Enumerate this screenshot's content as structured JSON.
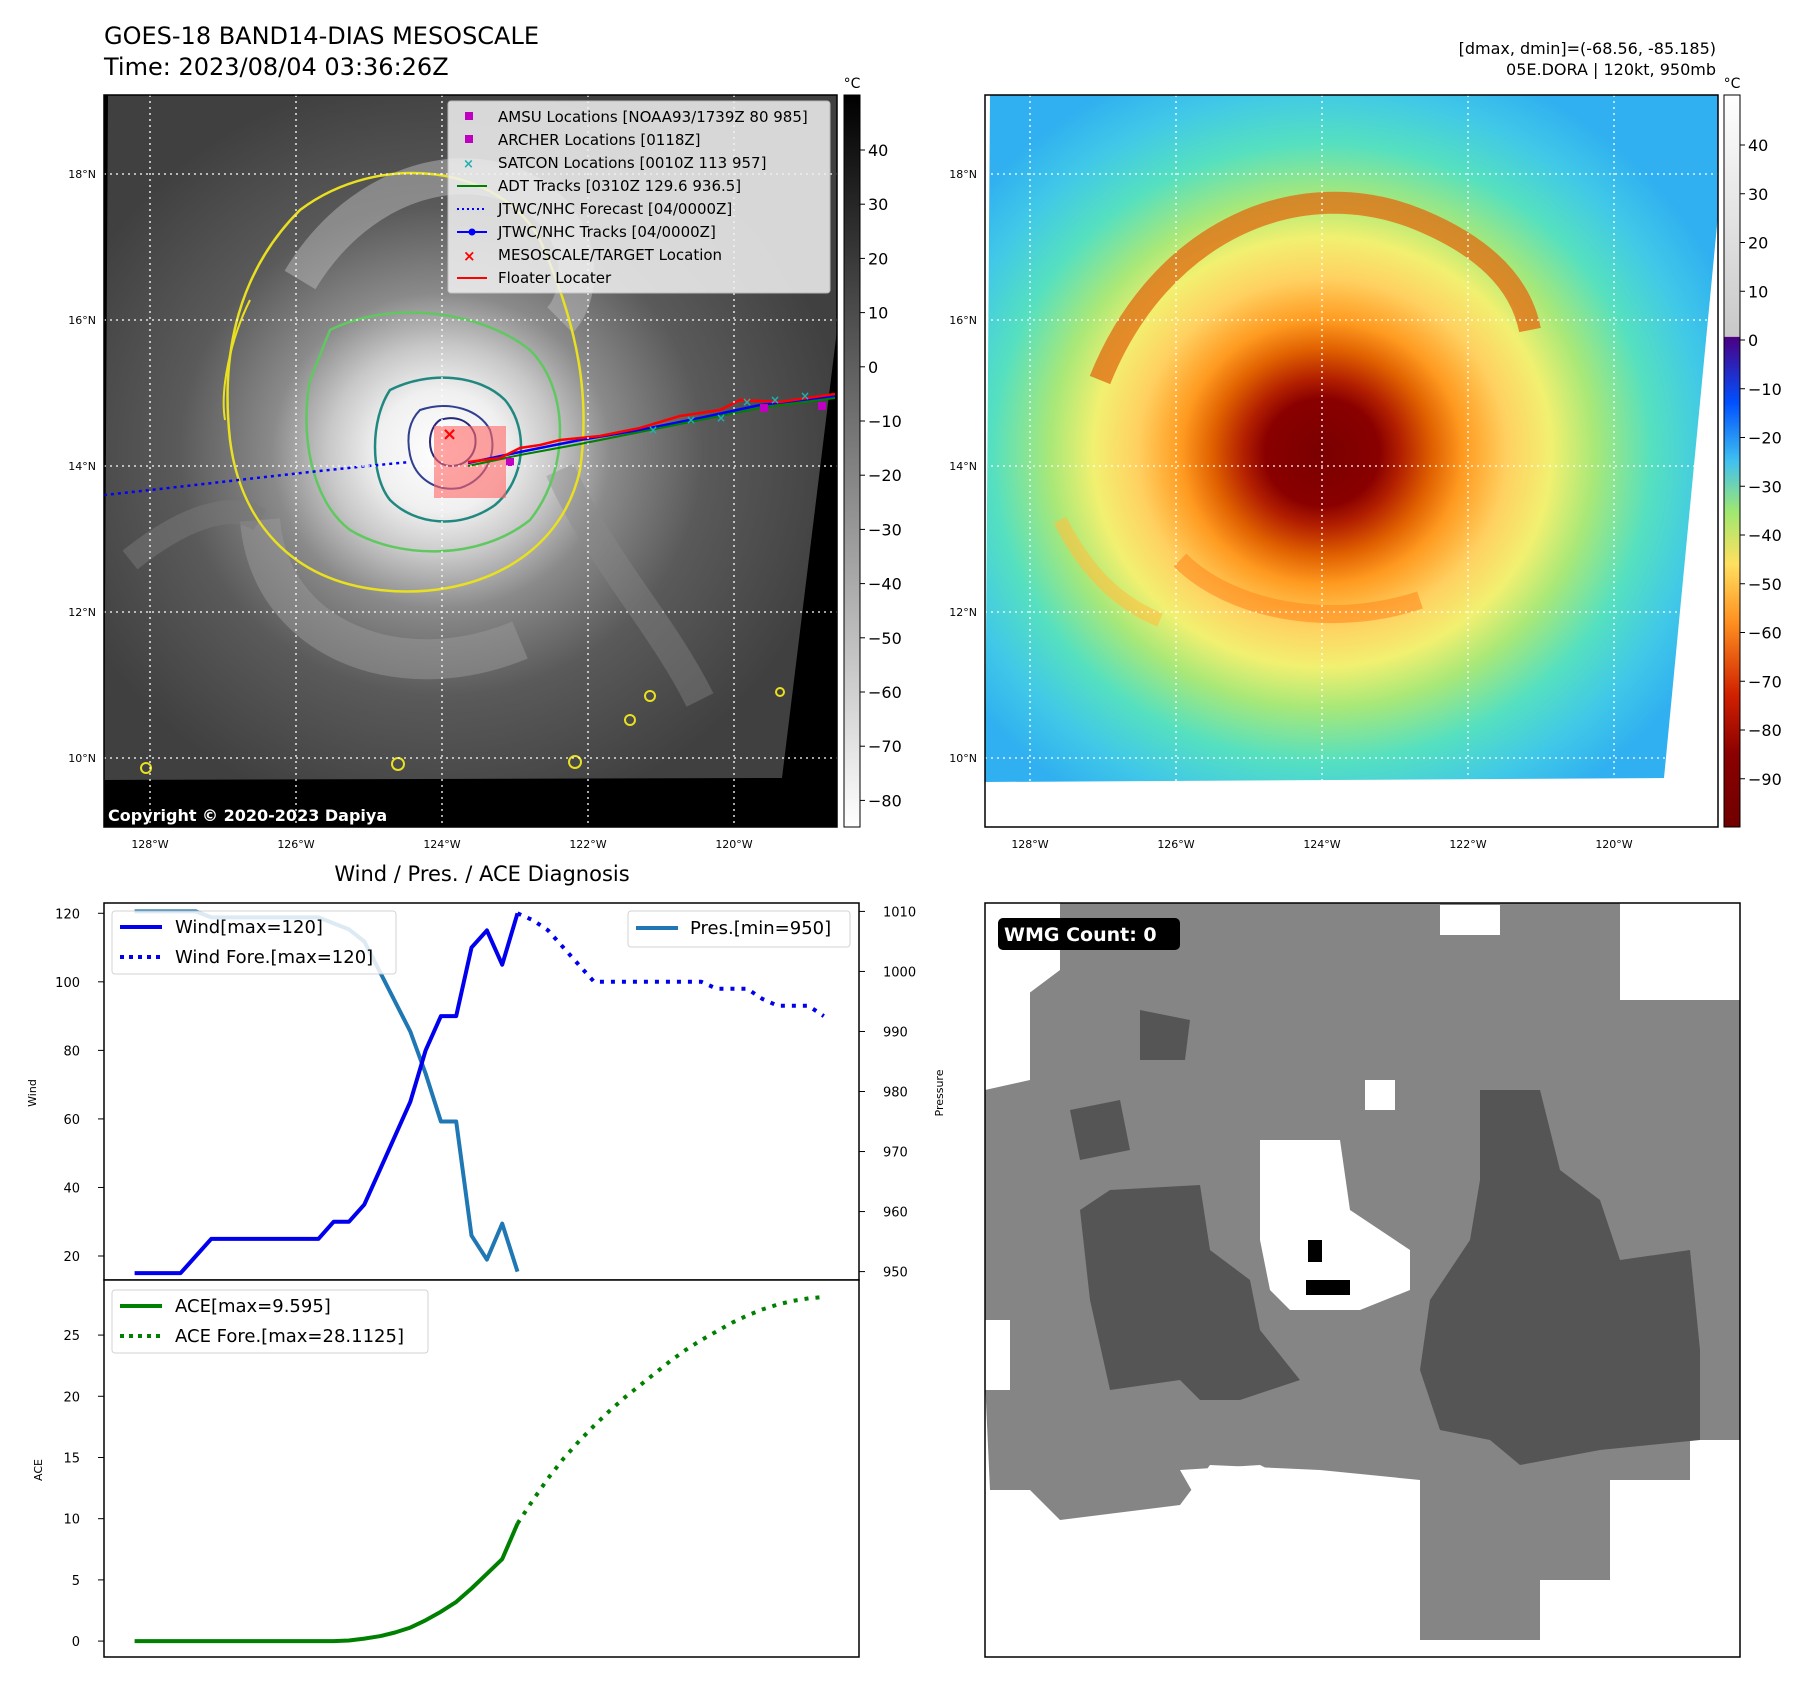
{
  "header": {
    "title_line1": "GOES-18 BAND14-DIAS MESOSCALE",
    "title_line2": "Time: 2023/08/04 03:36:26Z",
    "right_line1": "[dmax, dmin]=(-68.56, -85.185)",
    "right_line2": "05E.DORA | 120kt, 950mb"
  },
  "maps": {
    "lat_ticks": [
      "18°N",
      "16°N",
      "14°N",
      "12°N",
      "10°N"
    ],
    "lon_ticks": [
      "128°W",
      "126°W",
      "124°W",
      "122°W",
      "120°W"
    ],
    "copyright": "Copyright © 2020-2023 Dapiya",
    "legend": [
      {
        "label": "AMSU Locations [NOAA93/1739Z 80 985]",
        "marker": "square",
        "color": "#c000c0"
      },
      {
        "label": "ARCHER Locations [0118Z]",
        "marker": "square",
        "color": "#c000c0"
      },
      {
        "label": "SATCON Locations [0010Z 113 957]",
        "marker": "x",
        "color": "#20b0b0"
      },
      {
        "label": "ADT Tracks [0310Z 129.6 936.5]",
        "marker": "line",
        "color": "#008000"
      },
      {
        "label": "JTWC/NHC Forecast [04/0000Z]",
        "marker": "dotted",
        "color": "#0000ff"
      },
      {
        "label": "JTWC/NHC Tracks [04/0000Z]",
        "marker": "line-dot",
        "color": "#0000ff"
      },
      {
        "label": "MESOSCALE/TARGET Location",
        "marker": "x",
        "color": "#ff0000"
      },
      {
        "label": "Floater Locater",
        "marker": "line",
        "color": "#ff0000"
      }
    ]
  },
  "colorbars": {
    "unit": "°C",
    "left_ticks": [
      "40",
      "30",
      "20",
      "10",
      "0",
      "−10",
      "−20",
      "−30",
      "−40",
      "−50",
      "−60",
      "−70",
      "−80"
    ],
    "right_ticks": [
      "40",
      "30",
      "20",
      "10",
      "0",
      "−10",
      "−20",
      "−30",
      "−40",
      "−50",
      "−60",
      "−70",
      "−80",
      "−90"
    ]
  },
  "wmg": {
    "label": "WMG Count: 0"
  },
  "chart_data": {
    "type": "line",
    "title": "Wind / Pres. / ACE Diagnosis",
    "wind_axis": {
      "ylabel": "Wind",
      "ticks": [
        20,
        40,
        60,
        80,
        100,
        120
      ],
      "ylim": [
        13,
        123
      ]
    },
    "pressure_axis": {
      "ylabel": "Pressure",
      "ticks": [
        950,
        960,
        970,
        980,
        990,
        1000,
        1010
      ],
      "ylim": [
        948.6,
        1011.4
      ]
    },
    "ace_axis": {
      "ylabel": "ACE",
      "ticks": [
        0,
        5,
        10,
        15,
        20,
        25
      ],
      "ylim": [
        -1.3,
        29.5
      ]
    },
    "legends": {
      "wind": [
        "Wind[max=120]",
        "Wind Fore.[max=120]"
      ],
      "pressure": [
        "Pres.[min=950]"
      ],
      "ace": [
        "ACE[max=9.595]",
        "ACE Fore.[max=28.1125]"
      ]
    },
    "series": [
      {
        "name": "Wind[max=120]",
        "style": "solid",
        "color": "#0000ee",
        "x": [
          0,
          1,
          2,
          3,
          4,
          5,
          6,
          7,
          8,
          9,
          10,
          11,
          12,
          13,
          14,
          15,
          16,
          17,
          18,
          19,
          20,
          21,
          22,
          23,
          24,
          25
        ],
        "values": [
          15,
          15,
          15,
          15,
          20,
          25,
          25,
          25,
          25,
          25,
          25,
          25,
          25,
          30,
          30,
          35,
          45,
          55,
          65,
          80,
          90,
          90,
          110,
          115,
          105,
          120
        ]
      },
      {
        "name": "Wind Fore.[max=120]",
        "style": "dotted",
        "color": "#0000ee",
        "x": [
          25,
          26,
          27,
          28,
          29,
          30,
          31,
          32,
          33,
          34,
          35,
          36,
          37,
          38,
          39,
          40,
          41,
          42,
          43,
          44,
          45
        ],
        "values": [
          120,
          118,
          115,
          110,
          105,
          100,
          100,
          100,
          100,
          100,
          100,
          100,
          100,
          98,
          98,
          98,
          95,
          93,
          93,
          93,
          90
        ]
      },
      {
        "name": "Pres.[min=950]",
        "style": "solid",
        "color": "#1f77b4",
        "x": [
          0,
          1,
          2,
          3,
          4,
          5,
          6,
          7,
          8,
          9,
          10,
          11,
          12,
          13,
          14,
          15,
          16,
          17,
          18,
          19,
          20,
          21,
          22,
          23,
          24,
          25
        ],
        "values": [
          1010,
          1010,
          1010,
          1010,
          1010,
          1009,
          1009,
          1009,
          1009,
          1009,
          1009,
          1009,
          1009,
          1008,
          1007,
          1005,
          1000,
          995,
          990,
          983,
          975,
          975,
          956,
          952,
          958,
          950
        ]
      },
      {
        "name": "ACE[max=9.595]",
        "style": "solid",
        "color": "#008000",
        "x": [
          0,
          1,
          2,
          3,
          4,
          5,
          6,
          7,
          8,
          9,
          10,
          11,
          12,
          13,
          14,
          15,
          16,
          17,
          18,
          19,
          20,
          21,
          22,
          23,
          24,
          25
        ],
        "values": [
          0,
          0,
          0,
          0,
          0,
          0,
          0,
          0,
          0,
          0,
          0,
          0,
          0,
          0,
          0.05,
          0.2,
          0.4,
          0.7,
          1.1,
          1.7,
          2.4,
          3.2,
          4.3,
          5.5,
          6.7,
          9.595
        ]
      },
      {
        "name": "ACE Fore.[max=28.1125]",
        "style": "dotted",
        "color": "#008000",
        "x": [
          25,
          26,
          27,
          28,
          29,
          30,
          31,
          32,
          33,
          34,
          35,
          36,
          37,
          38,
          39,
          40,
          41,
          42,
          43,
          44,
          45
        ],
        "values": [
          9.595,
          11.5,
          13.3,
          14.9,
          16.3,
          17.6,
          18.8,
          19.9,
          20.9,
          21.9,
          22.9,
          23.8,
          24.6,
          25.3,
          26.0,
          26.6,
          27.1,
          27.5,
          27.8,
          28.0,
          28.1125
        ]
      }
    ]
  }
}
